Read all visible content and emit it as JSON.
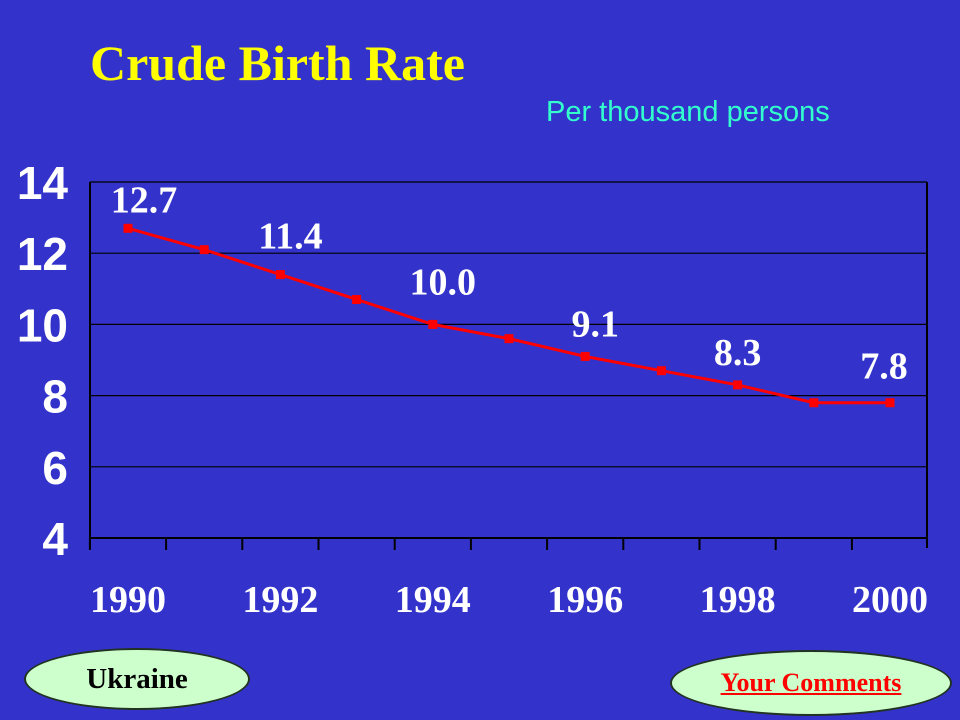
{
  "chart_data": {
    "type": "line",
    "title": "Crude Birth Rate",
    "subtitle": "Per thousand persons",
    "x": [
      1990,
      1991,
      1992,
      1993,
      1994,
      1995,
      1996,
      1997,
      1998,
      1999,
      2000
    ],
    "x_tick_labels": [
      "1990",
      "1992",
      "1994",
      "1996",
      "1998",
      "2000"
    ],
    "y_tick_labels": [
      "4",
      "6",
      "8",
      "10",
      "12",
      "14"
    ],
    "ylim": [
      4,
      14
    ],
    "series": [
      {
        "values": [
          12.7,
          12.1,
          11.4,
          10.7,
          10.0,
          9.6,
          9.1,
          8.7,
          8.3,
          7.8,
          7.8
        ]
      }
    ],
    "data_labels": [
      {
        "x": 1990,
        "text": "12.7"
      },
      {
        "x": 1992,
        "text": "11.4"
      },
      {
        "x": 1994,
        "text": "10.0"
      },
      {
        "x": 1996,
        "text": "9.1"
      },
      {
        "x": 1998,
        "text": "8.3"
      },
      {
        "x": 2000,
        "text": "7.8"
      }
    ],
    "grid": true,
    "colors": {
      "line": "#ff0000",
      "background": "#3333cc",
      "title": "#ffff00",
      "subtitle": "#33ffcc",
      "labels": "#ffffff",
      "axis": "#000000"
    }
  },
  "buttons": {
    "country": "Ukraine",
    "comments": "Your Comments"
  }
}
